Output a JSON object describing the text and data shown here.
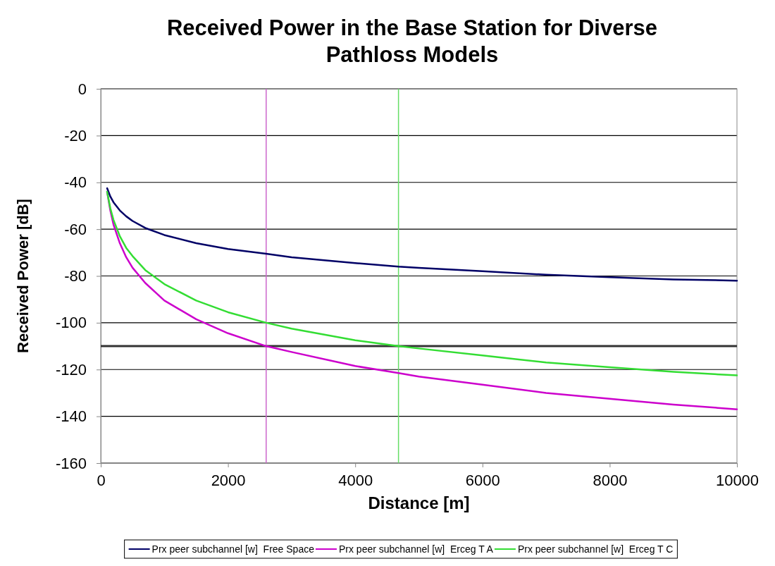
{
  "chart_data": {
    "type": "line",
    "title": "Received Power in the Base Station for Diverse Pathloss Models",
    "xlabel": "Distance [m]",
    "ylabel": "Received Power [dB]",
    "x": [
      100,
      150,
      200,
      300,
      400,
      500,
      700,
      1000,
      1500,
      2000,
      2600,
      3000,
      4000,
      4680,
      5000,
      6000,
      7000,
      8000,
      9000,
      10000
    ],
    "series": [
      {
        "name": "Prx peer subchannel [w]  Free Space",
        "color": "#000066",
        "values": [
          -42.5,
          -46,
          -48.5,
          -52,
          -54.5,
          -56.5,
          -59.5,
          -62.5,
          -66,
          -68.5,
          -70.5,
          -72,
          -74.5,
          -76,
          -76.5,
          -78,
          -79.5,
          -80.5,
          -81.5,
          -82
        ]
      },
      {
        "name": "Prx peer subchannel [w]  Erceg T A",
        "color": "#cc00cc",
        "values": [
          -44,
          -52,
          -58,
          -66,
          -72,
          -76.5,
          -83,
          -90.5,
          -98.5,
          -104.5,
          -110,
          -112.5,
          -118.5,
          -121.5,
          -123,
          -126.5,
          -130,
          -132.5,
          -135,
          -137
        ]
      },
      {
        "name": "Prx peer subchannel [w]  Erceg T C",
        "color": "#33dd33",
        "values": [
          -44,
          -51,
          -56,
          -63,
          -68,
          -71.5,
          -77.5,
          -83.5,
          -90.5,
          -95.5,
          -100,
          -102.5,
          -107.5,
          -110,
          -111,
          -114,
          -117,
          -119,
          -121,
          -122.5
        ]
      }
    ],
    "xlim": [
      0,
      10000
    ],
    "xticks": [
      0,
      2000,
      4000,
      6000,
      8000,
      10000
    ],
    "ylim": [
      -160,
      0
    ],
    "yticks": [
      -160,
      -140,
      -120,
      -100,
      -80,
      -60,
      -40,
      -20,
      0
    ],
    "ref_lines": [
      {
        "axis": "y",
        "value": -110,
        "color": "#333333"
      },
      {
        "axis": "x",
        "value": 2600,
        "color": "#cc66cc"
      },
      {
        "axis": "x",
        "value": 4680,
        "color": "#66dd66"
      }
    ],
    "grid": "y",
    "legend": "bottom",
    "marker": "none",
    "line_style": "solid"
  }
}
